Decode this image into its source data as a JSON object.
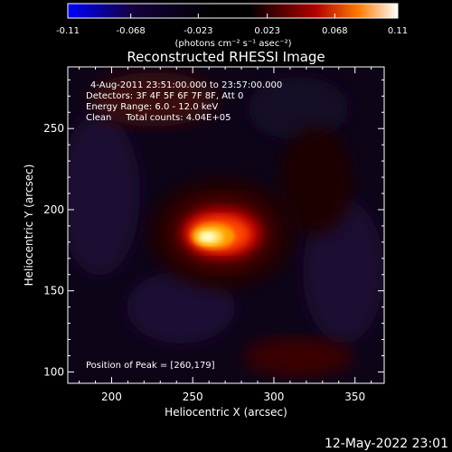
{
  "chart_data": {
    "type": "heatmap",
    "title": "Reconstructed RHESSI Image",
    "xlabel": "Heliocentric X (arcsec)",
    "ylabel": "Heliocentric Y (arcsec)",
    "xlim": [
      173,
      368
    ],
    "ylim": [
      93,
      288
    ],
    "x_ticks": [
      200,
      250,
      300,
      350
    ],
    "y_ticks": [
      100,
      150,
      200,
      250
    ],
    "colorbar": {
      "range": [
        -0.11,
        0.11
      ],
      "ticks": [
        "-0.11",
        "-0.068",
        "-0.023",
        "0.023",
        "0.068",
        "0.11"
      ],
      "unit_label": "(photons cm⁻² s⁻¹ asec⁻²)",
      "stops": [
        "#0000ff",
        "#140030",
        "#000000",
        "#000000",
        "#aa0000",
        "#ff7700",
        "#ffffff"
      ]
    },
    "annotations": [
      "4-Aug-2011 23:51:00.000 to 23:57:00.000",
      "Detectors: 3F 4F 5F 6F 7F 8F, Att 0",
      "Energy Range: 6.0 - 12.0 keV",
      "Clean     Total counts: 4.04E+05"
    ],
    "peak_label": "Position of Peak = [260,179]",
    "peak": {
      "x": 260,
      "y": 179,
      "value": 0.11
    }
  },
  "footer": {
    "date": "12-May-2022 23:01"
  }
}
